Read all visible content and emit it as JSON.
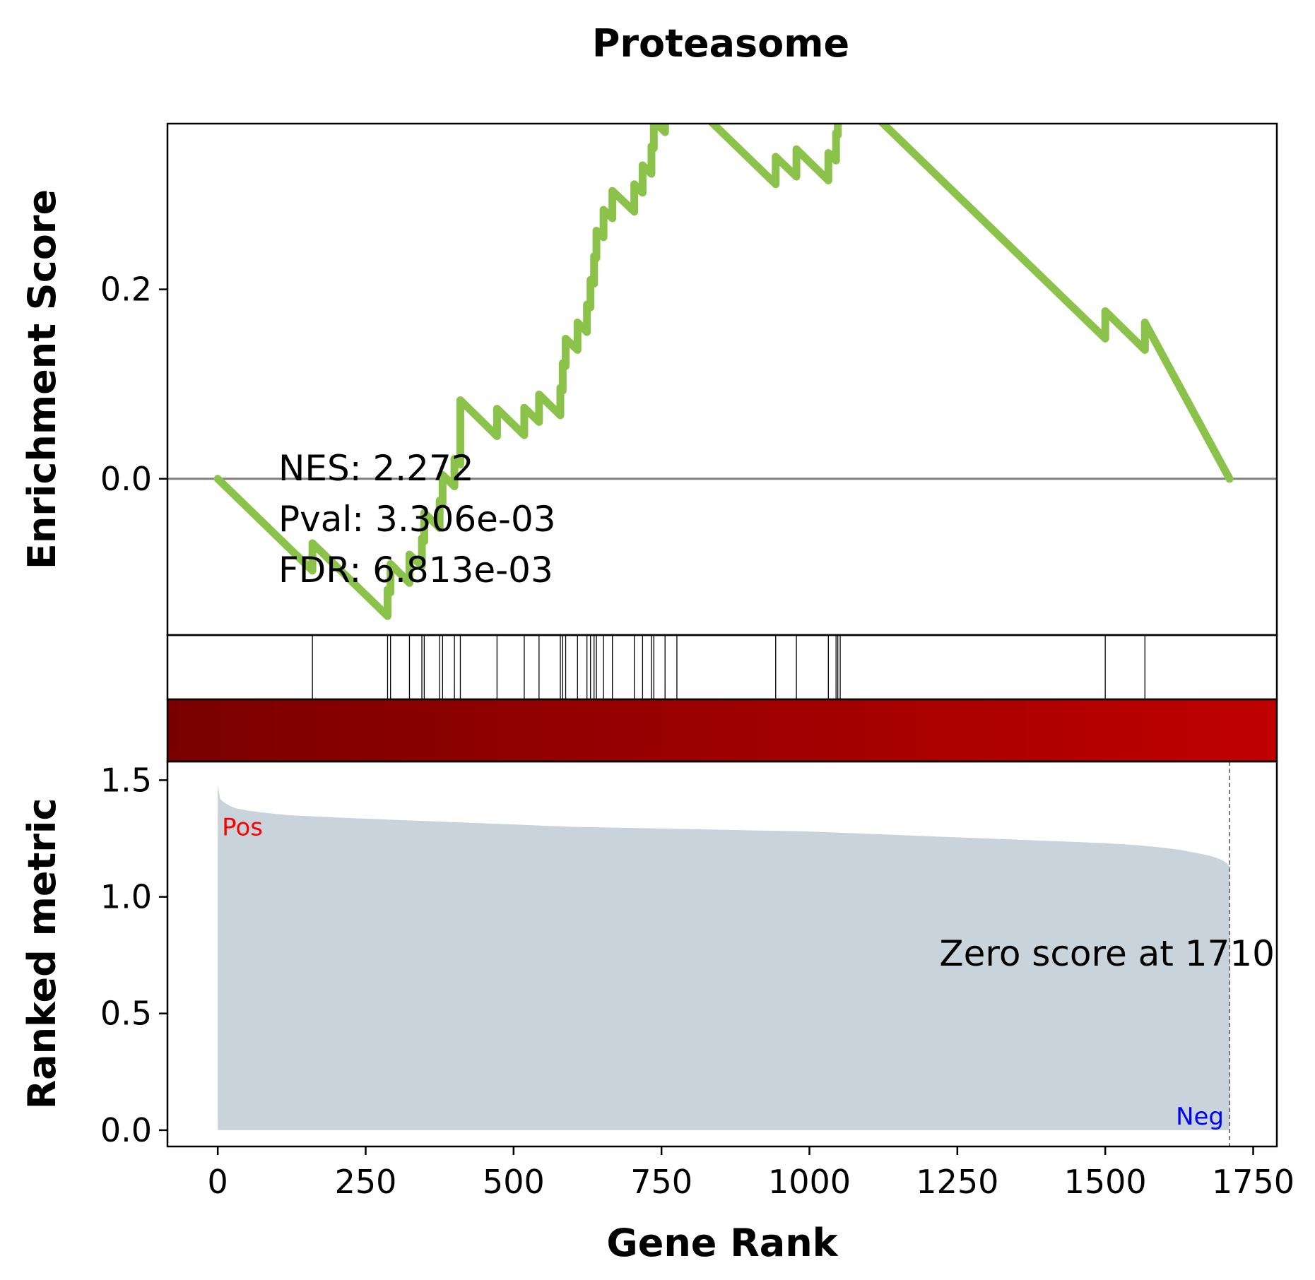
{
  "chart_data": {
    "type": "line",
    "title": "Proteasome",
    "xlabel": "Gene Rank",
    "es_ylabel": "Enrichment Score",
    "rank_ylabel": "Ranked metric",
    "xlim": [
      -85,
      1790
    ],
    "x_ticks": [
      0,
      250,
      500,
      750,
      1000,
      1250,
      1500,
      1750
    ],
    "x_tick_labels": [
      "0",
      "250",
      "500",
      "750",
      "1000",
      "1250",
      "1500",
      "1750"
    ],
    "es_ylim": [
      -0.165,
      0.375
    ],
    "es_y_ticks": [
      0.0,
      0.2
    ],
    "es_y_tick_labels": [
      "0.0",
      "0.2"
    ],
    "rank_ylim": [
      -0.07,
      1.58
    ],
    "rank_y_ticks": [
      0.0,
      0.5,
      1.0,
      1.5
    ],
    "rank_y_tick_labels": [
      "0.0",
      "0.5",
      "1.0",
      "1.5"
    ],
    "stats": {
      "nes": "NES: 2.272",
      "pval": "Pval: 3.306e-03",
      "fdr": "FDR: 6.813e-03"
    },
    "zero_score_text": "Zero score at 1710",
    "zero_score_rank": 1710,
    "pos_label": "Pos",
    "neg_label": "Neg",
    "hit_positions": [
      160,
      287,
      292,
      324,
      345,
      349,
      375,
      380,
      400,
      410,
      472,
      518,
      543,
      579,
      583,
      588,
      608,
      624,
      630,
      636,
      640,
      652,
      667,
      704,
      718,
      733,
      737,
      756,
      776,
      943,
      978,
      1032,
      1045,
      1048,
      1052,
      1500,
      1567
    ],
    "es_series": {
      "name": "",
      "x": [
        0,
        160,
        160,
        287,
        287,
        292,
        292,
        324,
        324,
        345,
        345,
        349,
        349,
        375,
        375,
        380,
        380,
        400,
        400,
        410,
        410,
        472,
        472,
        518,
        518,
        543,
        543,
        579,
        579,
        583,
        583,
        588,
        588,
        608,
        608,
        624,
        624,
        630,
        630,
        636,
        636,
        640,
        640,
        652,
        652,
        667,
        667,
        704,
        704,
        718,
        718,
        733,
        733,
        737,
        737,
        756,
        756,
        776,
        776,
        943,
        943,
        978,
        978,
        1032,
        1032,
        1045,
        1045,
        1048,
        1048,
        1052,
        1052,
        1500,
        1500,
        1567,
        1567,
        1710
      ],
      "y": [
        0.0,
        -0.097,
        -0.068,
        -0.145,
        -0.117,
        -0.12,
        -0.09,
        -0.11,
        -0.08,
        -0.092,
        -0.063,
        -0.066,
        -0.036,
        -0.052,
        -0.023,
        -0.026,
        0.004,
        -0.008,
        0.021,
        0.015,
        0.083,
        0.045,
        0.074,
        0.046,
        0.075,
        0.06,
        0.089,
        0.067,
        0.096,
        0.093,
        0.122,
        0.119,
        0.148,
        0.136,
        0.165,
        0.155,
        0.184,
        0.181,
        0.21,
        0.206,
        0.235,
        0.233,
        0.262,
        0.255,
        0.284,
        0.275,
        0.304,
        0.282,
        0.311,
        0.302,
        0.331,
        0.322,
        0.351,
        0.349,
        0.378,
        0.366,
        0.395,
        0.383,
        0.412,
        0.311,
        0.34,
        0.319,
        0.348,
        0.315,
        0.344,
        0.336,
        0.365,
        0.363,
        0.392,
        0.39,
        0.419,
        0.148,
        0.177,
        0.136,
        0.165,
        0.0
      ]
    },
    "rank_metric": {
      "x": [
        0,
        2,
        4,
        8,
        14,
        20,
        30,
        50,
        80,
        120,
        160,
        200,
        300,
        400,
        500,
        600,
        700,
        800,
        900,
        1000,
        1100,
        1200,
        1300,
        1400,
        1500,
        1560,
        1600,
        1630,
        1650,
        1670,
        1685,
        1695,
        1702,
        1707,
        1710
      ],
      "y": [
        1.48,
        1.45,
        1.42,
        1.41,
        1.4,
        1.39,
        1.38,
        1.37,
        1.36,
        1.35,
        1.345,
        1.34,
        1.33,
        1.32,
        1.31,
        1.3,
        1.295,
        1.29,
        1.285,
        1.28,
        1.27,
        1.26,
        1.25,
        1.24,
        1.23,
        1.22,
        1.21,
        1.2,
        1.19,
        1.18,
        1.17,
        1.16,
        1.15,
        1.14,
        1.13
      ]
    },
    "colors": {
      "es_line": "#8bc34a",
      "zero_line": "#808080",
      "rank_fill": "#c9d3dc",
      "pos_text": "#ff0000",
      "neg_text": "#0000ff",
      "heat_start": "#7a0000",
      "heat_end": "#bf0000"
    },
    "grid": false
  }
}
